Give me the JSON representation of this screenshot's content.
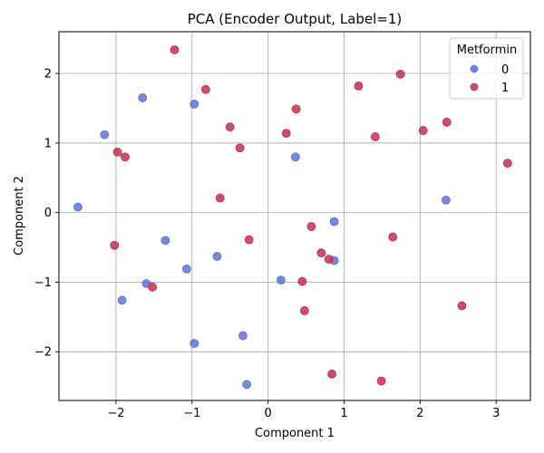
{
  "chart_data": {
    "type": "scatter",
    "title": "PCA (Encoder Output, Label=1)",
    "xlabel": "Component 1",
    "ylabel": "Component 2",
    "xlim": [
      -2.75,
      3.45
    ],
    "ylim": [
      -2.7,
      2.6
    ],
    "xticks": [
      -2,
      -1,
      0,
      1,
      2,
      3
    ],
    "yticks": [
      -2,
      -1,
      0,
      1,
      2
    ],
    "grid": true,
    "legend": {
      "title": "Metformin",
      "position": "top-right"
    },
    "series": [
      {
        "name": "0",
        "color": "#5a6fd0",
        "points": [
          [
            -2.5,
            0.08
          ],
          [
            -2.15,
            1.12
          ],
          [
            -1.65,
            1.65
          ],
          [
            -0.97,
            1.56
          ],
          [
            -1.35,
            -0.4
          ],
          [
            -1.07,
            -0.81
          ],
          [
            -0.67,
            -0.63
          ],
          [
            -1.6,
            -1.02
          ],
          [
            -1.92,
            -1.26
          ],
          [
            -0.97,
            -1.88
          ],
          [
            -0.33,
            -1.77
          ],
          [
            -0.28,
            -2.47
          ],
          [
            0.36,
            0.8
          ],
          [
            0.17,
            -0.97
          ],
          [
            0.87,
            -0.13
          ],
          [
            0.87,
            -0.69
          ],
          [
            2.34,
            0.18
          ]
        ]
      },
      {
        "name": "1",
        "color": "#c0294a",
        "points": [
          [
            -1.23,
            2.34
          ],
          [
            -0.82,
            1.77
          ],
          [
            -1.98,
            0.87
          ],
          [
            -1.88,
            0.8
          ],
          [
            -0.5,
            1.23
          ],
          [
            -0.37,
            0.93
          ],
          [
            -0.63,
            0.21
          ],
          [
            -2.02,
            -0.47
          ],
          [
            -0.25,
            -0.39
          ],
          [
            -1.52,
            -1.07
          ],
          [
            0.24,
            1.14
          ],
          [
            0.37,
            1.49
          ],
          [
            1.19,
            1.82
          ],
          [
            1.74,
            1.99
          ],
          [
            1.41,
            1.09
          ],
          [
            2.04,
            1.18
          ],
          [
            2.35,
            1.3
          ],
          [
            3.15,
            0.71
          ],
          [
            0.57,
            -0.2
          ],
          [
            0.7,
            -0.58
          ],
          [
            0.8,
            -0.67
          ],
          [
            1.64,
            -0.35
          ],
          [
            0.45,
            -0.99
          ],
          [
            0.48,
            -1.41
          ],
          [
            2.55,
            -1.34
          ],
          [
            0.84,
            -2.32
          ],
          [
            1.49,
            -2.42
          ]
        ]
      }
    ]
  }
}
